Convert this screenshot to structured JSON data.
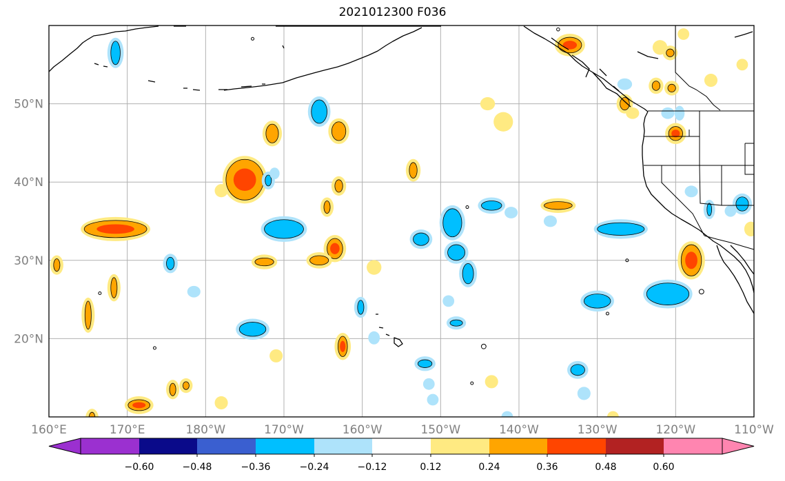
{
  "title": "2021012300 F036",
  "lon_ticks": [
    "160°E",
    "170°E",
    "180°W",
    "170°W",
    "160°W",
    "150°W",
    "140°W",
    "130°W",
    "120°W",
    "110°W"
  ],
  "lat_ticks": [
    "50°N",
    "40°N",
    "30°N",
    "20°N"
  ],
  "extent": {
    "lon_min": 160,
    "lon_max": 250,
    "lat_min": 10,
    "lat_max": 60
  },
  "colorbar": {
    "colors": [
      "#9b30d0",
      "#0a0a8a",
      "#3a5fd0",
      "#00bfff",
      "#aee3fb",
      "#ffffff",
      "#ffea82",
      "#ffa500",
      "#ff4500",
      "#b22222",
      "#ff85b0"
    ],
    "labels": [
      "−0.60",
      "−0.48",
      "−0.36",
      "−0.24",
      "−0.12",
      "0.12",
      "0.24",
      "0.36",
      "0.48",
      "0.60"
    ]
  },
  "blobs": [
    {
      "lon": 185,
      "lat": 40.3,
      "rx": 2.4,
      "ry": 2.6,
      "tier": 3
    },
    {
      "lon": 168.5,
      "lat": 34,
      "rx": 4,
      "ry": 1.1,
      "tier": 3
    },
    {
      "lon": 188.5,
      "lat": 46.2,
      "rx": 0.8,
      "ry": 1.2,
      "tier": 2
    },
    {
      "lon": 190,
      "lat": 34,
      "rx": 2.5,
      "ry": 1.2,
      "tier": -2
    },
    {
      "lon": 196.5,
      "lat": 31.5,
      "rx": 1.0,
      "ry": 1.3,
      "tier": 3
    },
    {
      "lon": 194.5,
      "lat": 30,
      "rx": 1.2,
      "ry": 0.6,
      "tier": 2
    },
    {
      "lon": 197,
      "lat": 46.5,
      "rx": 0.9,
      "ry": 1.2,
      "tier": 2
    },
    {
      "lon": 194.5,
      "lat": 49,
      "rx": 1.0,
      "ry": 1.5,
      "tier": -2
    },
    {
      "lon": 197,
      "lat": 39.5,
      "rx": 0.5,
      "ry": 0.8,
      "tier": 2
    },
    {
      "lon": 195.5,
      "lat": 36.8,
      "rx": 0.4,
      "ry": 0.8,
      "tier": 2
    },
    {
      "lon": 186,
      "lat": 21.2,
      "rx": 1.7,
      "ry": 0.9,
      "tier": -2
    },
    {
      "lon": 197.5,
      "lat": 19,
      "rx": 0.6,
      "ry": 1.3,
      "tier": 3
    },
    {
      "lon": 161,
      "lat": 29.4,
      "rx": 0.4,
      "ry": 0.8,
      "tier": 2
    },
    {
      "lon": 165,
      "lat": 23,
      "rx": 0.4,
      "ry": 1.8,
      "tier": 2
    },
    {
      "lon": 168.3,
      "lat": 26.5,
      "rx": 0.4,
      "ry": 1.3,
      "tier": 2
    },
    {
      "lon": 171.5,
      "lat": 11.5,
      "rx": 1.4,
      "ry": 0.7,
      "tier": 3
    },
    {
      "lon": 166.5,
      "lat": 25.8,
      "rx": 0.1,
      "ry": 0.1,
      "tier": 0
    },
    {
      "lon": 165.5,
      "lat": 9.8,
      "rx": 0.4,
      "ry": 0.8,
      "tier": 2
    },
    {
      "lon": 168.5,
      "lat": 56.5,
      "rx": 0.6,
      "ry": 1.5,
      "tier": -2
    },
    {
      "lon": 186,
      "lat": 58.3,
      "rx": 0.1,
      "ry": 0.1,
      "tier": 0
    },
    {
      "lon": 173.5,
      "lat": 18.8,
      "rx": 0.1,
      "ry": 0.1,
      "tier": 0
    },
    {
      "lon": 182,
      "lat": 38.9,
      "rx": 0.4,
      "ry": 0.4,
      "tier": 1
    },
    {
      "lon": 189,
      "lat": 17.8,
      "rx": 0.4,
      "ry": 0.4,
      "tier": 1
    },
    {
      "lon": 187.5,
      "lat": 29.8,
      "rx": 1.2,
      "ry": 0.5,
      "tier": 2
    },
    {
      "lon": 175.8,
      "lat": 13.5,
      "rx": 0.4,
      "ry": 0.8,
      "tier": 2
    },
    {
      "lon": 177.5,
      "lat": 14,
      "rx": 0.4,
      "ry": 0.5,
      "tier": 2
    },
    {
      "lon": 182,
      "lat": 11.8,
      "rx": 0.4,
      "ry": 0.4,
      "tier": 1
    },
    {
      "lon": 175.5,
      "lat": 29.6,
      "rx": 0.5,
      "ry": 0.8,
      "tier": -2
    },
    {
      "lon": 178.5,
      "lat": 26,
      "rx": 0.4,
      "ry": 0.3,
      "tier": -1
    },
    {
      "lon": 188,
      "lat": 40.2,
      "rx": 0.4,
      "ry": 0.7,
      "tier": -2
    },
    {
      "lon": 188.8,
      "lat": 41.1,
      "rx": 0.2,
      "ry": 0.3,
      "tier": -1
    },
    {
      "lon": 199.8,
      "lat": 24,
      "rx": 0.4,
      "ry": 0.9,
      "tier": -2
    },
    {
      "lon": 206.5,
      "lat": 41.5,
      "rx": 0.5,
      "ry": 1.0,
      "tier": 2
    },
    {
      "lon": 201.5,
      "lat": 29.1,
      "rx": 0.5,
      "ry": 0.5,
      "tier": 1
    },
    {
      "lon": 211.5,
      "lat": 34.8,
      "rx": 1.2,
      "ry": 1.8,
      "tier": -2
    },
    {
      "lon": 212,
      "lat": 31,
      "rx": 1.1,
      "ry": 1.0,
      "tier": -2
    },
    {
      "lon": 207.5,
      "lat": 32.7,
      "rx": 1.0,
      "ry": 0.8,
      "tier": -2
    },
    {
      "lon": 213.5,
      "lat": 28.3,
      "rx": 0.7,
      "ry": 1.3,
      "tier": -2
    },
    {
      "lon": 216.5,
      "lat": 37,
      "rx": 1.3,
      "ry": 0.6,
      "tier": -2
    },
    {
      "lon": 212,
      "lat": 22,
      "rx": 0.8,
      "ry": 0.4,
      "tier": -2
    },
    {
      "lon": 208,
      "lat": 16.8,
      "rx": 0.9,
      "ry": 0.5,
      "tier": -2
    },
    {
      "lon": 218,
      "lat": 47.7,
      "rx": 0.8,
      "ry": 0.8,
      "tier": 1
    },
    {
      "lon": 216,
      "lat": 50,
      "rx": 0.5,
      "ry": 0.4,
      "tier": 1
    },
    {
      "lon": 226.5,
      "lat": 57.5,
      "rx": 1.5,
      "ry": 1.0,
      "tier": 3
    },
    {
      "lon": 225,
      "lat": 37,
      "rx": 1.8,
      "ry": 0.5,
      "tier": 2
    },
    {
      "lon": 224,
      "lat": 35,
      "rx": 0.4,
      "ry": 0.3,
      "tier": -1
    },
    {
      "lon": 219,
      "lat": 36.1,
      "rx": 0.4,
      "ry": 0.3,
      "tier": -1
    },
    {
      "lon": 233,
      "lat": 34,
      "rx": 3.0,
      "ry": 0.8,
      "tier": -2
    },
    {
      "lon": 230,
      "lat": 24.8,
      "rx": 1.7,
      "ry": 0.9,
      "tier": -2
    },
    {
      "lon": 227.5,
      "lat": 16,
      "rx": 0.9,
      "ry": 0.7,
      "tier": -2
    },
    {
      "lon": 228.3,
      "lat": 13,
      "rx": 0.4,
      "ry": 0.4,
      "tier": -1
    },
    {
      "lon": 239,
      "lat": 25.7,
      "rx": 2.7,
      "ry": 1.4,
      "tier": -2
    },
    {
      "lon": 240,
      "lat": 46.2,
      "rx": 0.9,
      "ry": 0.9,
      "tier": 3
    },
    {
      "lon": 239.5,
      "lat": 52,
      "rx": 0.5,
      "ry": 0.5,
      "tier": 2
    },
    {
      "lon": 239,
      "lat": 48.8,
      "rx": 0.4,
      "ry": 0.3,
      "tier": -1
    },
    {
      "lon": 233.5,
      "lat": 50,
      "rx": 0.6,
      "ry": 0.8,
      "tier": 2
    },
    {
      "lon": 234.5,
      "lat": 48.8,
      "rx": 0.4,
      "ry": 0.3,
      "tier": 1
    },
    {
      "lon": 240.5,
      "lat": 48.8,
      "rx": 0.2,
      "ry": 0.5,
      "tier": -1
    },
    {
      "lon": 237.5,
      "lat": 52.3,
      "rx": 0.5,
      "ry": 0.6,
      "tier": 2
    },
    {
      "lon": 238,
      "lat": 57.2,
      "rx": 0.5,
      "ry": 0.5,
      "tier": 1
    },
    {
      "lon": 239.3,
      "lat": 56.5,
      "rx": 0.5,
      "ry": 0.5,
      "tier": 2
    },
    {
      "lon": 241,
      "lat": 58.9,
      "rx": 0.3,
      "ry": 0.3,
      "tier": 1
    },
    {
      "lon": 233.5,
      "lat": 52.5,
      "rx": 0.5,
      "ry": 0.3,
      "tier": -1
    },
    {
      "lon": 248.5,
      "lat": 55,
      "rx": 0.3,
      "ry": 0.3,
      "tier": 1
    },
    {
      "lon": 244.5,
      "lat": 53,
      "rx": 0.4,
      "ry": 0.4,
      "tier": 1
    },
    {
      "lon": 242,
      "lat": 30,
      "rx": 1.3,
      "ry": 2.0,
      "tier": 3
    },
    {
      "lon": 243.3,
      "lat": 26,
      "rx": 0.3,
      "ry": 0.3,
      "tier": 0
    },
    {
      "lon": 242,
      "lat": 38.8,
      "rx": 0.4,
      "ry": 0.3,
      "tier": -1
    },
    {
      "lon": 244.3,
      "lat": 36.5,
      "rx": 0.3,
      "ry": 0.8,
      "tier": -2
    },
    {
      "lon": 248.5,
      "lat": 37.2,
      "rx": 0.8,
      "ry": 0.9,
      "tier": -2
    },
    {
      "lon": 247,
      "lat": 36.3,
      "rx": 0.3,
      "ry": 0.3,
      "tier": -1
    },
    {
      "lon": 249.6,
      "lat": 34,
      "rx": 0.4,
      "ry": 0.5,
      "tier": 1
    },
    {
      "lon": 215.5,
      "lat": 19,
      "rx": 0.3,
      "ry": 0.3,
      "tier": 0
    },
    {
      "lon": 231.3,
      "lat": 23.2,
      "rx": 0.1,
      "ry": 0.1,
      "tier": 0
    },
    {
      "lon": 216.5,
      "lat": 14.5,
      "rx": 0.4,
      "ry": 0.4,
      "tier": 1
    },
    {
      "lon": 225,
      "lat": 59.5,
      "rx": 0.2,
      "ry": 0.2,
      "tier": 0
    },
    {
      "lon": 233.8,
      "lat": 30,
      "rx": 0.1,
      "ry": 0.1,
      "tier": 0
    },
    {
      "lon": 208.5,
      "lat": 14.2,
      "rx": 0.3,
      "ry": 0.3,
      "tier": -1
    },
    {
      "lon": 209,
      "lat": 12.2,
      "rx": 0.3,
      "ry": 0.3,
      "tier": -1
    },
    {
      "lon": 211,
      "lat": 24.8,
      "rx": 0.3,
      "ry": 0.3,
      "tier": -1
    },
    {
      "lon": 214,
      "lat": 14.3,
      "rx": 0.1,
      "ry": 0.1,
      "tier": 0
    },
    {
      "lon": 201.5,
      "lat": 20.1,
      "rx": 0.3,
      "ry": 0.4,
      "tier": -1
    },
    {
      "lon": 213.4,
      "lat": 36.8,
      "rx": 0.1,
      "ry": 0.1,
      "tier": 0
    },
    {
      "lon": 218.5,
      "lat": 10,
      "rx": 0.3,
      "ry": 0.3,
      "tier": -1
    },
    {
      "lon": 232,
      "lat": 10,
      "rx": 0.3,
      "ry": 0.3,
      "tier": 1
    }
  ]
}
